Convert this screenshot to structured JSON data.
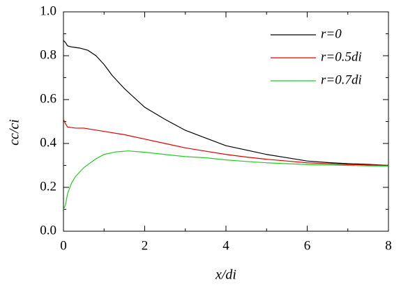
{
  "chart_data": {
    "type": "line",
    "xlabel": "x/di",
    "ylabel": "cc/ci",
    "xlim": [
      0,
      8
    ],
    "xticks": [
      0,
      2,
      4,
      6,
      8
    ],
    "xminorticks": [
      1,
      3,
      5,
      7
    ],
    "ylim": [
      0,
      1
    ],
    "yticks": [
      {
        "value": 0,
        "label": "0.0"
      },
      0.2,
      0.4,
      0.6,
      0.8,
      {
        "value": 1,
        "label": "1.0"
      }
    ],
    "yminorticks": [
      0.1,
      0.3,
      0.5,
      0.7,
      0.9
    ],
    "legend": "upper right",
    "series": [
      {
        "name": "r=0",
        "color": "#000000",
        "x": [
          0,
          0.05,
          0.1,
          0.2,
          0.4,
          0.6,
          0.8,
          1.0,
          1.2,
          1.5,
          2,
          2.5,
          3,
          3.5,
          4,
          4.5,
          5,
          5.5,
          6,
          6.5,
          7,
          7.5,
          8
        ],
        "values": [
          0.87,
          0.86,
          0.845,
          0.84,
          0.835,
          0.825,
          0.8,
          0.76,
          0.71,
          0.65,
          0.565,
          0.51,
          0.46,
          0.425,
          0.39,
          0.37,
          0.35,
          0.335,
          0.32,
          0.313,
          0.308,
          0.305,
          0.3
        ]
      },
      {
        "name": "r=0.5di",
        "color": "#e00000",
        "x": [
          0,
          0.05,
          0.1,
          0.3,
          0.5,
          1,
          1.5,
          2,
          2.5,
          3,
          3.5,
          4,
          4.5,
          5,
          5.5,
          6,
          6.5,
          7,
          7.5,
          8
        ],
        "values": [
          0.51,
          0.49,
          0.475,
          0.47,
          0.47,
          0.455,
          0.44,
          0.42,
          0.4,
          0.38,
          0.365,
          0.35,
          0.338,
          0.328,
          0.32,
          0.312,
          0.308,
          0.304,
          0.302,
          0.3
        ]
      },
      {
        "name": "r=0.7di",
        "color": "#22cc22",
        "x": [
          0,
          0.05,
          0.1,
          0.2,
          0.3,
          0.5,
          0.8,
          1,
          1.3,
          1.6,
          2,
          2.5,
          3,
          3.5,
          4,
          4.5,
          5,
          5.5,
          6,
          6.5,
          7,
          7.5,
          8
        ],
        "values": [
          0.1,
          0.12,
          0.17,
          0.22,
          0.25,
          0.29,
          0.33,
          0.35,
          0.362,
          0.366,
          0.36,
          0.35,
          0.34,
          0.335,
          0.325,
          0.318,
          0.312,
          0.308,
          0.304,
          0.302,
          0.3,
          0.298,
          0.297
        ]
      }
    ]
  }
}
